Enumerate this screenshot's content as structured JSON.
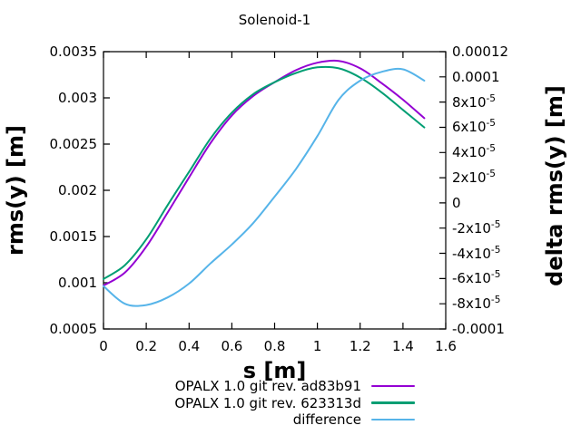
{
  "chart_data": {
    "type": "line",
    "title": "Solenoid-1",
    "xlabel": "s [m]",
    "ylabel": "rms(y) [m]",
    "y2label": "delta rms(y) [m]",
    "background": "#ffffff",
    "axis_color": "#000000",
    "grid": false,
    "legend_position": "bottom-right",
    "xlim": [
      0,
      1.6
    ],
    "ylim": [
      0.0005,
      0.0035
    ],
    "y2lim": [
      -0.0001,
      0.00012
    ],
    "x_ticks": [
      {
        "v": 0,
        "label": "0"
      },
      {
        "v": 0.2,
        "label": "0.2"
      },
      {
        "v": 0.4,
        "label": "0.4"
      },
      {
        "v": 0.6,
        "label": "0.6"
      },
      {
        "v": 0.8,
        "label": "0.8"
      },
      {
        "v": 1,
        "label": "1"
      },
      {
        "v": 1.2,
        "label": "1.2"
      },
      {
        "v": 1.4,
        "label": "1.4"
      },
      {
        "v": 1.6,
        "label": "1.6"
      }
    ],
    "y_ticks": [
      {
        "v": 0.0035,
        "label": "0.0035"
      },
      {
        "v": 0.003,
        "label": "0.003"
      },
      {
        "v": 0.0025,
        "label": "0.0025"
      },
      {
        "v": 0.002,
        "label": "0.002"
      },
      {
        "v": 0.0015,
        "label": "0.0015"
      },
      {
        "v": 0.001,
        "label": "0.001"
      },
      {
        "v": 0.0005,
        "label": "0.0005"
      }
    ],
    "y2_ticks": [
      {
        "v": 0.00012,
        "label": "0.00012"
      },
      {
        "v": 0.0001,
        "label": "0.0001"
      },
      {
        "v": 8e-05,
        "label": "8x10^-5"
      },
      {
        "v": 6e-05,
        "label": "6x10^-5"
      },
      {
        "v": 4e-05,
        "label": "4x10^-5"
      },
      {
        "v": 2e-05,
        "label": "2x10^-5"
      },
      {
        "v": 0,
        "label": "0"
      },
      {
        "v": -2e-05,
        "label": "-2x10^-5"
      },
      {
        "v": -4e-05,
        "label": "-4x10^-5"
      },
      {
        "v": -6e-05,
        "label": "-6x10^-5"
      },
      {
        "v": -8e-05,
        "label": "-8x10^-5"
      },
      {
        "v": -0.0001,
        "label": "-0.0001"
      }
    ],
    "x": [
      0,
      0.1,
      0.2,
      0.3,
      0.4,
      0.5,
      0.6,
      0.7,
      0.8,
      0.9,
      1.0,
      1.1,
      1.2,
      1.3,
      1.4,
      1.5
    ],
    "series": [
      {
        "name": "OPALX 1.0 git rev. ad83b91",
        "color": "#9400d3",
        "axis": "left",
        "values": [
          0.00097,
          0.00111,
          0.00139,
          0.00176,
          0.00214,
          0.00251,
          0.00281,
          0.00302,
          0.00317,
          0.0033,
          0.00338,
          0.0034,
          0.00332,
          0.00316,
          0.00298,
          0.00278
        ]
      },
      {
        "name": "OPALX 1.0 git rev. 623313d",
        "color": "#009e73",
        "axis": "left",
        "values": [
          0.00104,
          0.00119,
          0.00147,
          0.00184,
          0.0022,
          0.00256,
          0.00284,
          0.00304,
          0.00317,
          0.00327,
          0.00333,
          0.00332,
          0.00322,
          0.00306,
          0.00287,
          0.00268
        ]
      },
      {
        "name": "difference",
        "color": "#56b4e9",
        "axis": "right",
        "values": [
          -6.6e-05,
          -8e-05,
          -8.1e-05,
          -7.5e-05,
          -6.4e-05,
          -4.8e-05,
          -3.3e-05,
          -1.6e-05,
          5e-06,
          2.7e-05,
          5.3e-05,
          8.2e-05,
          9.7e-05,
          0.000104,
          0.000106,
          9.7e-05
        ]
      }
    ]
  }
}
